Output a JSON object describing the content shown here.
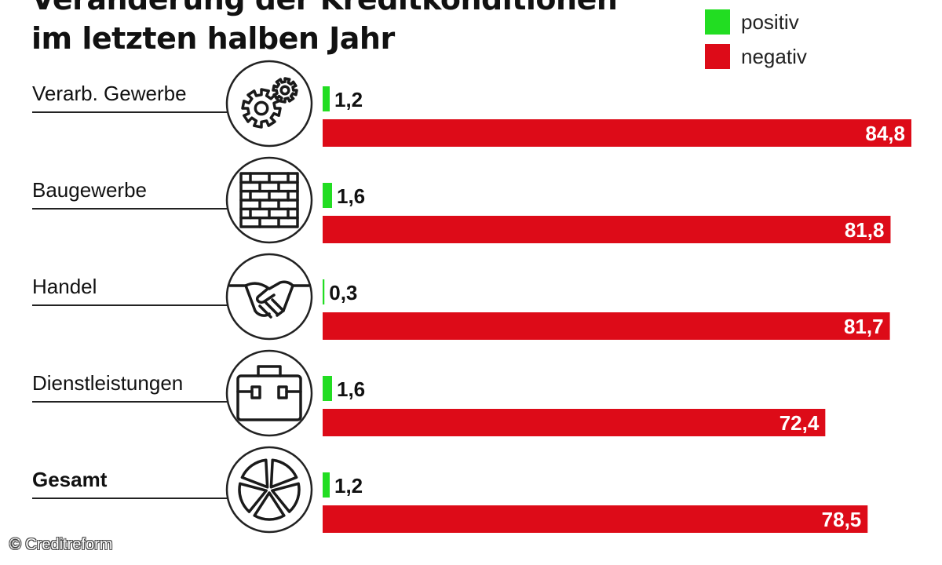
{
  "header": {
    "title_line1": "Veränderung der Kreditkonditionen",
    "title_line2": "im letzten halben Jahr"
  },
  "legend": {
    "items": [
      {
        "label": "positiv",
        "color": "#22dd22"
      },
      {
        "label": "negativ",
        "color": "#dd0b18"
      }
    ]
  },
  "chart_data": {
    "type": "bar",
    "orientation": "horizontal",
    "title": "Veränderung der Kreditkonditionen im letzten halben Jahr",
    "categories": [
      "Verarb. Gewerbe",
      "Baugewerbe",
      "Handel",
      "Dienstleistungen",
      "Gesamt"
    ],
    "category_icons": [
      "gears-icon",
      "brick-wall-icon",
      "handshake-icon",
      "briefcase-icon",
      "pie-icon"
    ],
    "series": [
      {
        "name": "positiv",
        "color": "#22dd22",
        "values": [
          1.2,
          1.6,
          0.3,
          1.6,
          1.2
        ],
        "labels": [
          "1,2",
          "1,6",
          "0,3",
          "1,6",
          "1,2"
        ]
      },
      {
        "name": "negativ",
        "color": "#dd0b18",
        "values": [
          84.8,
          81.8,
          81.7,
          72.4,
          78.5
        ],
        "labels": [
          "84,8",
          "81,8",
          "81,7",
          "72,4",
          "78,5"
        ]
      }
    ],
    "xlim": [
      0,
      84.8
    ],
    "legend_position": "top-right"
  },
  "footer": {
    "source": "© Creditreform"
  }
}
